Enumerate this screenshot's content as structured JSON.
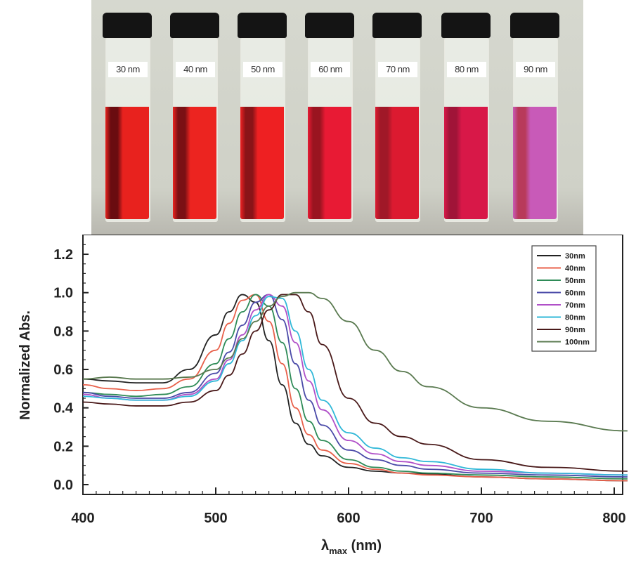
{
  "photo": {
    "vials": [
      {
        "label": "30 nm",
        "color": "#e8221e",
        "shade": "#6a0c10"
      },
      {
        "label": "40 nm",
        "color": "#ec2420",
        "shade": "#7a1014"
      },
      {
        "label": "50 nm",
        "color": "#ee2022",
        "shade": "#8a1418"
      },
      {
        "label": "60 nm",
        "color": "#e81a34",
        "shade": "#9a1420"
      },
      {
        "label": "70 nm",
        "color": "#dc1a30",
        "shade": "#a01828"
      },
      {
        "label": "80 nm",
        "color": "#d81848",
        "shade": "#a01438"
      },
      {
        "label": "90 nm",
        "color": "#c85ab8",
        "shade": "#b83a5a"
      }
    ]
  },
  "chart_data": {
    "type": "line",
    "title": "",
    "xlabel": "λmax (nm)",
    "xlabel_main": "λ",
    "xlabel_sub": "max",
    "xlabel_rest": " (nm)",
    "ylabel": "Normalized Abs.",
    "xlim": [
      400,
      810
    ],
    "ylim": [
      -0.08,
      1.3
    ],
    "xticks": [
      "400",
      "500",
      "600",
      "700",
      "800"
    ],
    "yticks": [
      "0.0",
      "0.2",
      "0.4",
      "0.6",
      "0.8",
      "1.0",
      "1.2"
    ],
    "grid": false,
    "legend_position": "upper right",
    "x": [
      400,
      420,
      440,
      460,
      480,
      500,
      510,
      520,
      530,
      540,
      550,
      560,
      570,
      580,
      600,
      620,
      640,
      660,
      700,
      750,
      810
    ],
    "series": [
      {
        "name": "30nm",
        "color": "#222222",
        "values": [
          0.55,
          0.54,
          0.53,
          0.53,
          0.6,
          0.78,
          0.9,
          0.99,
          0.95,
          0.75,
          0.52,
          0.32,
          0.21,
          0.15,
          0.09,
          0.07,
          0.06,
          0.055,
          0.04,
          0.03,
          0.02
        ]
      },
      {
        "name": "40nm",
        "color": "#e8604a",
        "values": [
          0.52,
          0.5,
          0.49,
          0.5,
          0.55,
          0.7,
          0.84,
          0.96,
          0.99,
          0.85,
          0.63,
          0.4,
          0.26,
          0.18,
          0.11,
          0.08,
          0.06,
          0.05,
          0.04,
          0.03,
          0.02
        ]
      },
      {
        "name": "50nm",
        "color": "#2e8b57",
        "values": [
          0.48,
          0.47,
          0.46,
          0.47,
          0.51,
          0.63,
          0.76,
          0.9,
          0.99,
          0.93,
          0.74,
          0.5,
          0.33,
          0.23,
          0.13,
          0.09,
          0.07,
          0.06,
          0.05,
          0.04,
          0.03
        ]
      },
      {
        "name": "60nm",
        "color": "#4a4aa8",
        "values": [
          0.48,
          0.46,
          0.45,
          0.45,
          0.48,
          0.58,
          0.69,
          0.83,
          0.95,
          0.99,
          0.86,
          0.63,
          0.44,
          0.31,
          0.18,
          0.13,
          0.1,
          0.08,
          0.06,
          0.05,
          0.04
        ]
      },
      {
        "name": "70nm",
        "color": "#b050c8",
        "values": [
          0.47,
          0.45,
          0.44,
          0.44,
          0.47,
          0.55,
          0.65,
          0.78,
          0.91,
          0.99,
          0.93,
          0.74,
          0.54,
          0.39,
          0.23,
          0.16,
          0.12,
          0.1,
          0.07,
          0.06,
          0.05
        ]
      },
      {
        "name": "80nm",
        "color": "#30b8d8",
        "values": [
          0.46,
          0.45,
          0.44,
          0.44,
          0.46,
          0.54,
          0.63,
          0.75,
          0.88,
          0.98,
          0.97,
          0.8,
          0.6,
          0.44,
          0.27,
          0.19,
          0.14,
          0.12,
          0.08,
          0.06,
          0.05
        ]
      },
      {
        "name": "90nm",
        "color": "#4a1a1a",
        "values": [
          0.43,
          0.42,
          0.41,
          0.41,
          0.43,
          0.49,
          0.57,
          0.68,
          0.8,
          0.91,
          0.99,
          0.99,
          0.9,
          0.73,
          0.45,
          0.32,
          0.25,
          0.21,
          0.13,
          0.09,
          0.07
        ]
      },
      {
        "name": "100nm",
        "color": "#5a7a50",
        "values": [
          0.55,
          0.56,
          0.55,
          0.55,
          0.56,
          0.6,
          0.66,
          0.76,
          0.85,
          0.93,
          0.98,
          1.0,
          1.0,
          0.97,
          0.85,
          0.7,
          0.59,
          0.51,
          0.4,
          0.33,
          0.28
        ]
      }
    ]
  }
}
